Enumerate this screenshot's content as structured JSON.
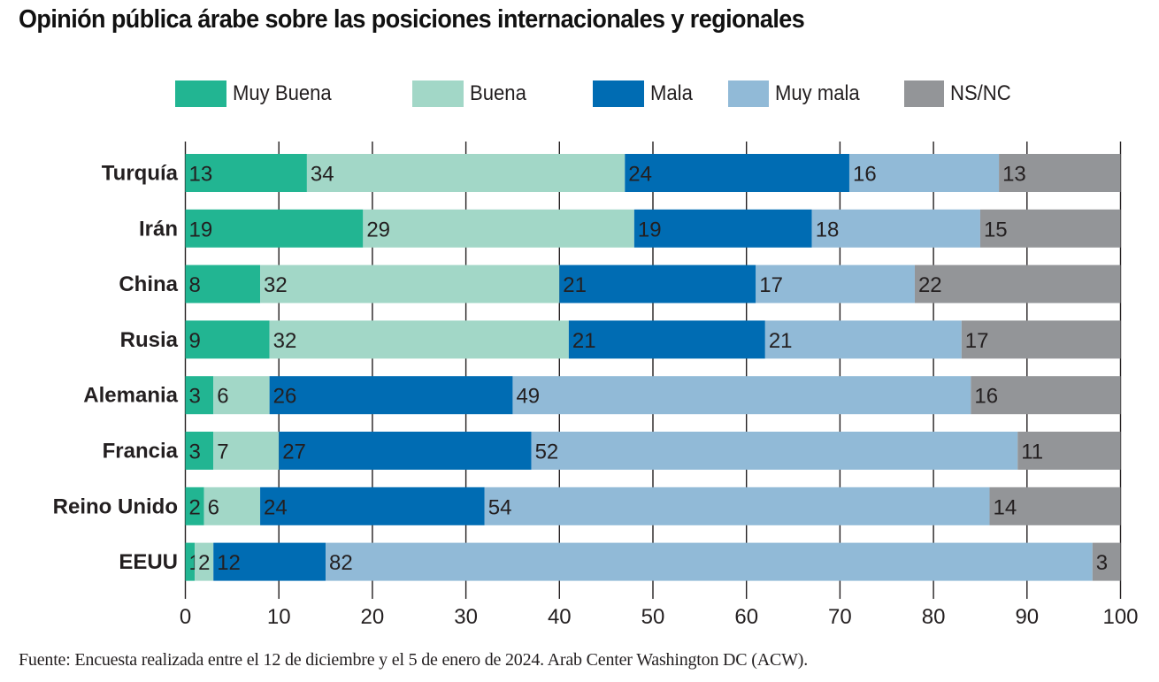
{
  "chart_data": {
    "type": "bar",
    "orientation": "horizontal",
    "stacked": true,
    "title": "Opinión pública árabe sobre las posiciones internacionales y regionales",
    "xlabel": "",
    "ylabel": "",
    "xlim": [
      0,
      100
    ],
    "xticks": [
      0,
      10,
      20,
      30,
      40,
      50,
      60,
      70,
      80,
      90,
      100
    ],
    "grid": true,
    "legend_position": "top",
    "categories": [
      "Turquía",
      "Irán",
      "China",
      "Rusia",
      "Alemania",
      "Francia",
      "Reino Unido",
      "EEUU"
    ],
    "series": [
      {
        "name": "Muy Buena",
        "color": "#22b592",
        "values": [
          13,
          19,
          8,
          9,
          3,
          3,
          2,
          1
        ]
      },
      {
        "name": "Buena",
        "color": "#a2d7c7",
        "values": [
          34,
          29,
          32,
          32,
          6,
          7,
          6,
          2
        ]
      },
      {
        "name": "Mala",
        "color": "#006cb3",
        "values": [
          24,
          19,
          21,
          21,
          26,
          27,
          24,
          12
        ]
      },
      {
        "name": "Muy mala",
        "color": "#91bad7",
        "values": [
          16,
          18,
          17,
          21,
          49,
          52,
          54,
          82
        ]
      },
      {
        "name": "NS/NC",
        "color": "#939598",
        "values": [
          13,
          15,
          22,
          17,
          16,
          11,
          14,
          3
        ]
      }
    ],
    "source": "Fuente: Encuesta realizada entre el 12 de diciembre y el 5 de enero de 2024. Arab Center Washington DC (ACW)."
  }
}
